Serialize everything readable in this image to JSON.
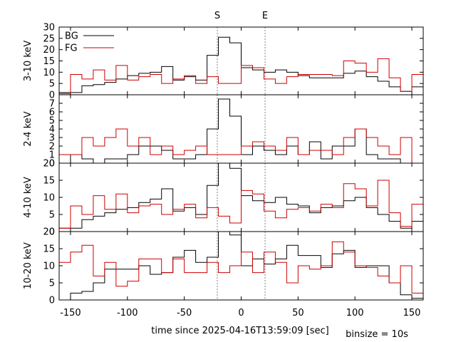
{
  "chart_data": {
    "type": "line",
    "step": true,
    "xlabel": "time since 2025-04-16T13:59:09 [sec]",
    "binsize_label": "binsize = 10s",
    "xlim": [
      -160,
      160
    ],
    "xticks": [
      -150,
      -100,
      -50,
      0,
      50,
      100,
      150
    ],
    "bin_edges": [
      -160,
      -150,
      -140,
      -130,
      -120,
      -110,
      -100,
      -90,
      -80,
      -70,
      -60,
      -50,
      -40,
      -30,
      -20,
      -10,
      0,
      10,
      20,
      30,
      40,
      50,
      60,
      70,
      80,
      90,
      100,
      110,
      120,
      130,
      140,
      150,
      160
    ],
    "markers": [
      {
        "label": "S",
        "x": -21
      },
      {
        "label": "E",
        "x": 21
      }
    ],
    "legend": {
      "placement": "top-left"
    },
    "colors": {
      "BG": "#000000",
      "FG": "#cc0000",
      "marker": "#808080"
    },
    "panels": [
      {
        "ylabel": "3-10 keV",
        "ylim": [
          0,
          30
        ],
        "yticks": [
          0,
          5,
          10,
          15,
          20,
          25,
          30
        ],
        "show_legend": true,
        "series": [
          {
            "name": "BG",
            "values": [
              1,
              1,
              4,
              4.5,
              5.5,
              7,
              8.5,
              9.5,
              10,
              12.5,
              6.5,
              8,
              6.5,
              17.5,
              25.5,
              23,
              12,
              11,
              10,
              11,
              10,
              8.5,
              7.5,
              7.5,
              7.5,
              9.5,
              10.5,
              8,
              6,
              3.5,
              1.5,
              3.5
            ]
          },
          {
            "name": "FG",
            "values": [
              0.5,
              9,
              7,
              11,
              6.5,
              13,
              6.5,
              8,
              9,
              5,
              7,
              8.5,
              5,
              8,
              5,
              5,
              13,
              12,
              7,
              5,
              8,
              9,
              9,
              9,
              8.5,
              15,
              14,
              10,
              16,
              7.5,
              1.5,
              9
            ]
          }
        ]
      },
      {
        "ylabel": "2-4 keV",
        "ylim": [
          0,
          8
        ],
        "yticks": [
          0,
          1,
          2,
          3,
          4,
          5,
          6,
          7
        ],
        "show_legend": false,
        "series": [
          {
            "name": "BG",
            "values": [
              0,
              1,
              0.5,
              0,
              0.5,
              0.5,
              1,
              2,
              2,
              1.5,
              0.5,
              0.5,
              1,
              4,
              7.5,
              5.5,
              1,
              2,
              1.5,
              1,
              2,
              1,
              2.5,
              0.5,
              2,
              2,
              4,
              1,
              0.5,
              0.5,
              0,
              0
            ]
          },
          {
            "name": "FG",
            "values": [
              1,
              1,
              3,
              2,
              3,
              4,
              2,
              3,
              1,
              2,
              1,
              1.5,
              2,
              1,
              1,
              1,
              2,
              2.5,
              2,
              1.5,
              3,
              1,
              1.5,
              1.5,
              1,
              3,
              4,
              3,
              2,
              1,
              3,
              0
            ]
          }
        ]
      },
      {
        "ylabel": "4-10 keV",
        "ylim": [
          0,
          20
        ],
        "yticks": [
          0,
          5,
          10,
          15,
          20
        ],
        "show_legend": false,
        "series": [
          {
            "name": "BG",
            "values": [
              1,
              1,
              3.5,
              4.5,
              5.5,
              6.5,
              7,
              8.5,
              9.5,
              12.5,
              6,
              7,
              5,
              13.5,
              20.5,
              18.5,
              10.5,
              9,
              8.5,
              10,
              8,
              7.5,
              5.5,
              7,
              7.5,
              9,
              10,
              7,
              5,
              3,
              1,
              3
            ]
          },
          {
            "name": "FG",
            "values": [
              1,
              7.5,
              5,
              10.5,
              6.5,
              11,
              5.5,
              7.5,
              8,
              5,
              6.5,
              8,
              4,
              7,
              4.5,
              2.5,
              12,
              11,
              6,
              4,
              6.5,
              7,
              6,
              8,
              7,
              14,
              12.5,
              7.5,
              15,
              5.5,
              1.5,
              8
            ]
          }
        ]
      },
      {
        "ylabel": "10-20 keV",
        "ylim": [
          0,
          20
        ],
        "yticks": [
          0,
          5,
          10,
          15,
          20
        ],
        "show_legend": false,
        "series": [
          {
            "name": "BG",
            "values": [
              0,
              2,
              2.5,
              5,
              9,
              9,
              9,
              10,
              7.5,
              8,
              12.5,
              14.5,
              11,
              12.5,
              23,
              19,
              10,
              12,
              10.5,
              12,
              16,
              13,
              13,
              9.5,
              13.5,
              14.5,
              9.5,
              10,
              10,
              5,
              1.5,
              0.5
            ]
          },
          {
            "name": "FG",
            "values": [
              11,
              14,
              16,
              7,
              11,
              4,
              5.5,
              12,
              12,
              8,
              12,
              8,
              8,
              11,
              8,
              10,
              14,
              8,
              14,
              11,
              5,
              10,
              9,
              10,
              17,
              14,
              10,
              9.5,
              7,
              5,
              10,
              2
            ]
          }
        ]
      }
    ]
  }
}
